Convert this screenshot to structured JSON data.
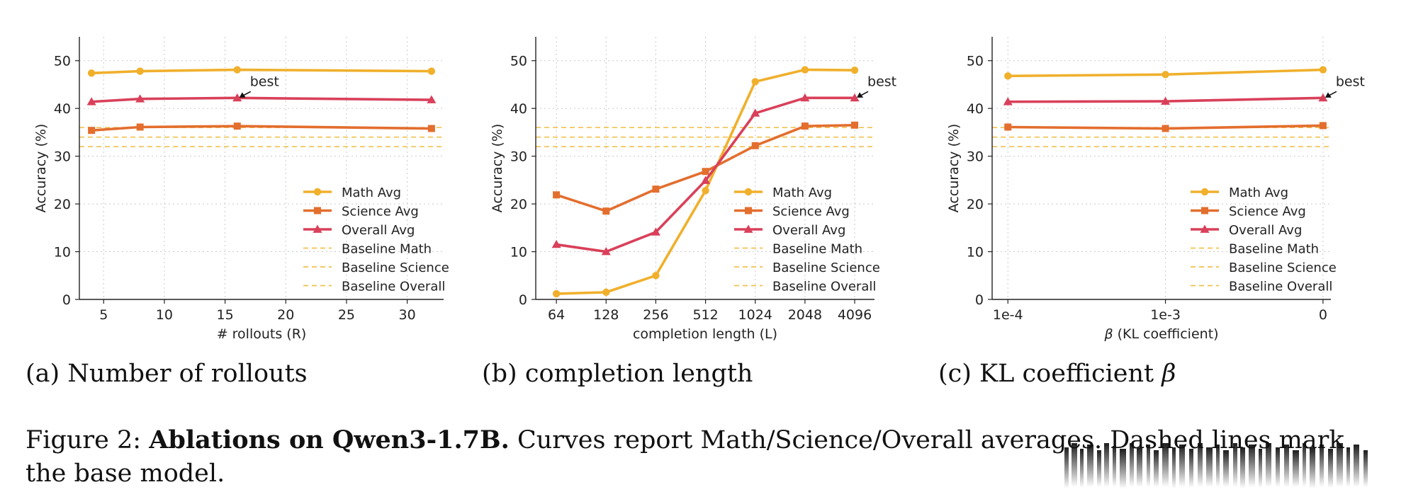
{
  "colors": {
    "math": "#f0b02c",
    "science": "#e36e2e",
    "overall": "#d9405a",
    "baseline": "#f2c14e",
    "grid": "#c9c9c9",
    "axis": "#222222"
  },
  "subcaptions": {
    "a": "(a) Number of rollouts",
    "b": "(b) completion length",
    "c_prefix": "(c) KL coefficient",
    "c_symbol": "β"
  },
  "caption": {
    "prefix": "Figure 2:",
    "bold": "Ablations on Qwen3-1.7B.",
    "rest": "Curves report Math/Science/Overall averages. Dashed lines mark the base model."
  },
  "chart_data": [
    {
      "type": "line",
      "id": "a",
      "xlabel": "# rollouts (R)",
      "ylabel": "Accuracy (%)",
      "x_scale": "linear",
      "xlim": [
        3,
        33
      ],
      "ylim": [
        0,
        55
      ],
      "xticks": [
        5,
        10,
        15,
        20,
        25,
        30
      ],
      "xtick_labels": [
        "5",
        "10",
        "15",
        "20",
        "25",
        "30"
      ],
      "yticks": [
        0,
        10,
        20,
        30,
        40,
        50
      ],
      "ytick_labels": [
        "0",
        "10",
        "20",
        "30",
        "40",
        "50"
      ],
      "grid": true,
      "x": [
        4,
        8,
        16,
        32
      ],
      "series": [
        {
          "name": "Math Avg",
          "marker": "circle",
          "values": [
            47.4,
            47.8,
            48.1,
            47.8
          ]
        },
        {
          "name": "Science Avg",
          "marker": "square",
          "values": [
            35.4,
            36.1,
            36.3,
            35.8
          ]
        },
        {
          "name": "Overall Avg",
          "marker": "triangle",
          "values": [
            41.4,
            42.0,
            42.2,
            41.8
          ]
        }
      ],
      "baselines": [
        {
          "name": "Baseline Math",
          "value": 36.0
        },
        {
          "name": "Baseline Science",
          "value": 32.0
        },
        {
          "name": "Baseline Overall",
          "value": 34.0
        }
      ],
      "annotation": {
        "text": "best",
        "x": 16,
        "y": 42.2
      },
      "legend": "lower-right"
    },
    {
      "type": "line",
      "id": "b",
      "xlabel": "completion length (L)",
      "ylabel": "Accuracy (%)",
      "x_scale": "log2",
      "xlim": [
        48,
        5400
      ],
      "ylim": [
        0,
        55
      ],
      "xticks": [
        64,
        128,
        256,
        512,
        1024,
        2048,
        4096
      ],
      "xtick_labels": [
        "64",
        "128",
        "256",
        "512",
        "1024",
        "2048",
        "4096"
      ],
      "yticks": [
        0,
        10,
        20,
        30,
        40,
        50
      ],
      "ytick_labels": [
        "0",
        "10",
        "20",
        "30",
        "40",
        "50"
      ],
      "grid": true,
      "x": [
        64,
        128,
        256,
        512,
        1024,
        2048,
        4096
      ],
      "series": [
        {
          "name": "Math Avg",
          "marker": "circle",
          "values": [
            1.2,
            1.5,
            5.0,
            22.8,
            45.6,
            48.1,
            48.0
          ]
        },
        {
          "name": "Science Avg",
          "marker": "square",
          "values": [
            21.9,
            18.5,
            23.1,
            26.8,
            32.2,
            36.3,
            36.5
          ]
        },
        {
          "name": "Overall Avg",
          "marker": "triangle",
          "values": [
            11.5,
            10.0,
            14.1,
            24.9,
            39.0,
            42.2,
            42.2
          ]
        }
      ],
      "baselines": [
        {
          "name": "Baseline Math",
          "value": 36.0
        },
        {
          "name": "Baseline Science",
          "value": 32.0
        },
        {
          "name": "Baseline Overall",
          "value": 34.0
        }
      ],
      "annotation": {
        "text": "best",
        "x": 4096,
        "y": 42.2
      },
      "legend": "lower-right"
    },
    {
      "type": "line",
      "id": "c",
      "xlabel_symbol": "β",
      "xlabel": "(KL coefficient)",
      "ylabel": "Accuracy (%)",
      "x_scale": "categorical",
      "xlim": [
        -0.1,
        2.05
      ],
      "ylim": [
        0,
        55
      ],
      "xticks": [
        0,
        1,
        2
      ],
      "xtick_labels": [
        "1e-4",
        "1e-3",
        "0"
      ],
      "yticks": [
        0,
        10,
        20,
        30,
        40,
        50
      ],
      "ytick_labels": [
        "0",
        "10",
        "20",
        "30",
        "40",
        "50"
      ],
      "grid": true,
      "x": [
        0,
        1,
        2
      ],
      "series": [
        {
          "name": "Math Avg",
          "marker": "circle",
          "values": [
            46.8,
            47.1,
            48.1
          ]
        },
        {
          "name": "Science Avg",
          "marker": "square",
          "values": [
            36.1,
            35.8,
            36.4
          ]
        },
        {
          "name": "Overall Avg",
          "marker": "triangle",
          "values": [
            41.4,
            41.5,
            42.2
          ]
        }
      ],
      "baselines": [
        {
          "name": "Baseline Math",
          "value": 36.0
        },
        {
          "name": "Baseline Science",
          "value": 32.0
        },
        {
          "name": "Baseline Overall",
          "value": 34.0
        }
      ],
      "annotation": {
        "text": "best",
        "x": 2,
        "y": 42.2
      },
      "legend": "lower-right"
    }
  ]
}
